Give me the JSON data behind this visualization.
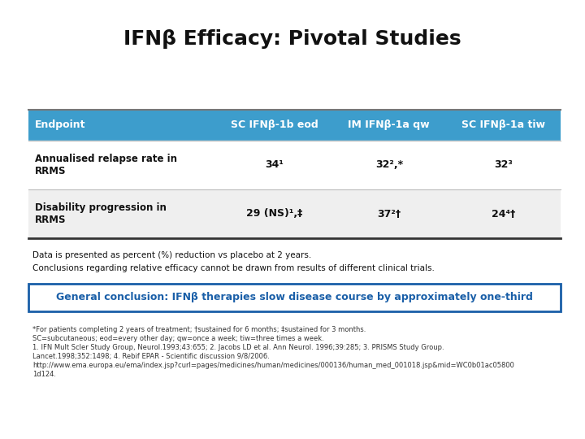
{
  "title": "IFNβ Efficacy: Pivotal Studies",
  "title_fontsize": 18,
  "header_bg": "#3d9dcc",
  "header_text_color": "#FFFFFF",
  "row1_bg": "#FFFFFF",
  "row2_bg": "#EFEFEF",
  "col_headers": [
    "Endpoint",
    "SC IFNβ-1b eod",
    "IM IFNβ-1a qw",
    "SC IFNβ-1a tiw"
  ],
  "row1_label": "Annualised relapse rate in\nRRMS",
  "row2_label": "Disability progression in\nRRMS",
  "row1_values": [
    "34¹",
    "32²,*",
    "32³"
  ],
  "row2_values": [
    "29 (NS)¹,‡",
    "37²†",
    "24⁴†"
  ],
  "note1": "Data is presented as percent (%) reduction vs placebo at 2 years.",
  "note2": "Conclusions regarding relative efficacy cannot be drawn from results of different clinical trials.",
  "conclusion": "General conclusion: IFNβ therapies slow disease course by approximately one-third",
  "conclusion_color": "#1a5fa8",
  "conclusion_border": "#1a5fa8",
  "footnote_line1": "*For patients completing 2 years of treatment; †sustained for 6 months; ‡sustained for 3 months.",
  "footnote_line2": "SC=subcutaneous; eod=every other day; qw=once a week; tiw=three times a week.",
  "footnote_line3": "1. IFN Mult Scler Study Group, Neurol.1993;43:655; 2. Jacobs LD et al. Ann Neurol. 1996;39:285; 3. PRISMS Study Group.",
  "footnote_line4": "Lancet.1998;352:1498; 4. Rebif EPAR - Scientific discussion 9/8/2006.",
  "footnote_line5": "http://www.ema.europa.eu/ema/index.jsp?curl=pages/medicines/human/medicines/000136/human_med_001018.jsp&mid=WC0b01ac05800",
  "footnote_line6": "1d124.",
  "bg_color": "#FFFFFF"
}
